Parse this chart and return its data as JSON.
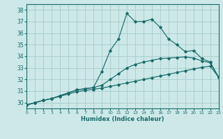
{
  "xlabel": "Humidex (Indice chaleur)",
  "bg_color": "#cce8e8",
  "grid_color": "#a8cccc",
  "line_color": "#1a6b6b",
  "xlim": [
    0,
    23
  ],
  "ylim": [
    29.5,
    38.5
  ],
  "yticks": [
    30,
    31,
    32,
    33,
    34,
    35,
    36,
    37,
    38
  ],
  "xticks": [
    0,
    1,
    2,
    3,
    4,
    5,
    6,
    7,
    8,
    9,
    10,
    11,
    12,
    13,
    14,
    15,
    16,
    17,
    18,
    19,
    20,
    21,
    22,
    23
  ],
  "curve_top_x": [
    0,
    1,
    2,
    3,
    4,
    5,
    6,
    7,
    8,
    9,
    10,
    11,
    12,
    13,
    14,
    15,
    16,
    17,
    18,
    19,
    20,
    21,
    22,
    23
  ],
  "curve_top_y": [
    29.8,
    30.0,
    30.2,
    30.35,
    30.6,
    30.85,
    31.1,
    31.2,
    31.3,
    32.7,
    34.5,
    35.5,
    37.7,
    37.0,
    37.0,
    37.2,
    36.5,
    35.5,
    35.0,
    34.4,
    34.5,
    33.8,
    33.5,
    32.2
  ],
  "curve_mid_x": [
    0,
    1,
    2,
    3,
    4,
    5,
    6,
    7,
    8,
    9,
    10,
    11,
    12,
    13,
    14,
    15,
    16,
    17,
    18,
    19,
    20,
    21,
    22,
    23
  ],
  "curve_mid_y": [
    29.8,
    30.0,
    30.2,
    30.35,
    30.6,
    30.85,
    31.1,
    31.2,
    31.3,
    31.5,
    32.0,
    32.5,
    33.0,
    33.3,
    33.5,
    33.65,
    33.8,
    33.85,
    33.9,
    33.95,
    33.85,
    33.6,
    33.45,
    32.2
  ],
  "curve_bot_x": [
    0,
    1,
    2,
    3,
    4,
    5,
    6,
    7,
    8,
    9,
    10,
    11,
    12,
    13,
    14,
    15,
    16,
    17,
    18,
    19,
    20,
    21,
    22,
    23
  ],
  "curve_bot_y": [
    29.8,
    30.0,
    30.2,
    30.35,
    30.55,
    30.75,
    30.95,
    31.05,
    31.15,
    31.25,
    31.4,
    31.55,
    31.7,
    31.85,
    32.0,
    32.15,
    32.3,
    32.45,
    32.6,
    32.75,
    32.9,
    33.05,
    33.15,
    32.2
  ]
}
